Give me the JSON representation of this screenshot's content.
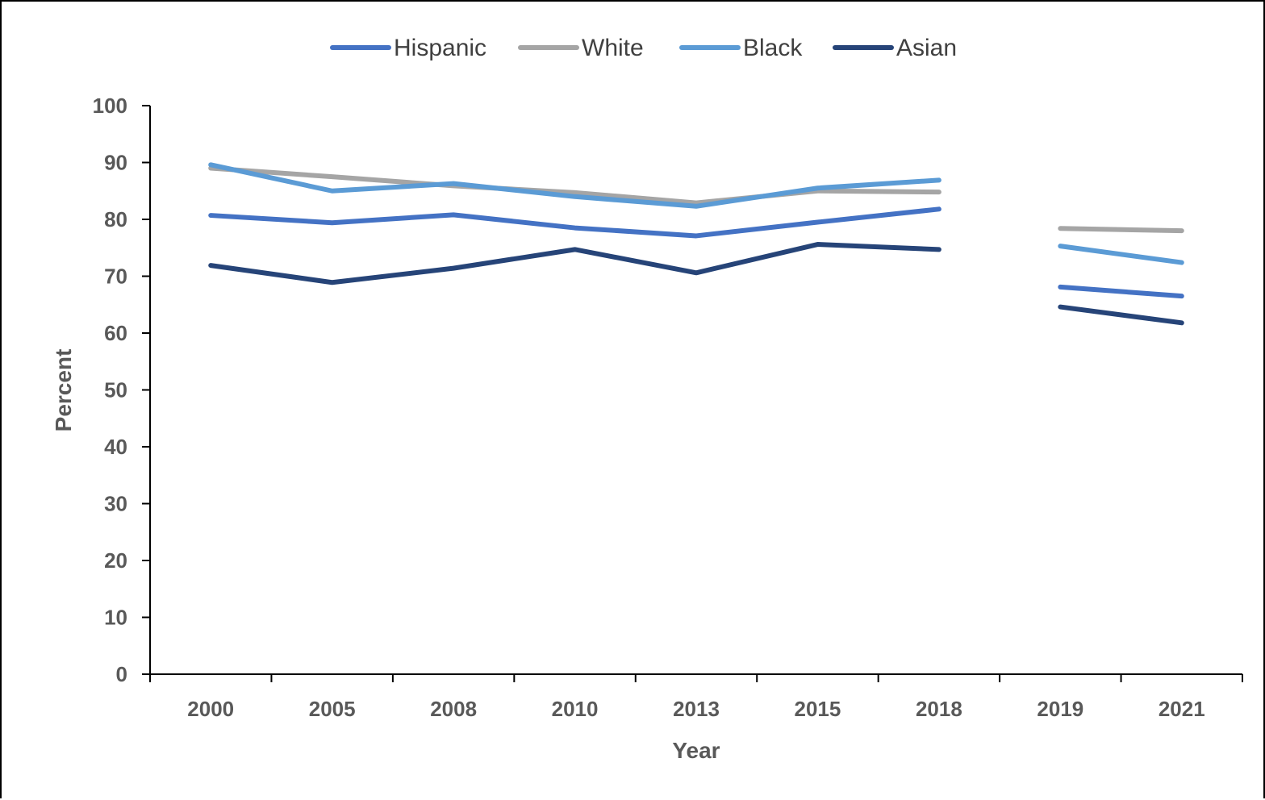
{
  "chart_data": {
    "type": "line",
    "categories": [
      "2000",
      "2005",
      "2008",
      "2010",
      "2013",
      "2015",
      "2018",
      "2019",
      "2021"
    ],
    "series": [
      {
        "name": "Hispanic",
        "color": "#4472C4",
        "values": [
          80.7,
          79.4,
          80.8,
          78.5,
          77.1,
          79.5,
          81.8,
          68.1,
          66.5
        ]
      },
      {
        "name": "White",
        "color": "#A5A5A5",
        "values": [
          89.0,
          87.5,
          85.9,
          84.7,
          82.9,
          85.0,
          84.8,
          78.4,
          78.0
        ]
      },
      {
        "name": "Black",
        "color": "#5B9BD5",
        "values": [
          89.6,
          85.0,
          86.3,
          84.0,
          82.3,
          85.5,
          86.9,
          75.3,
          72.4
        ]
      },
      {
        "name": "Asian",
        "color": "#264478",
        "values": [
          71.9,
          68.9,
          71.4,
          74.7,
          70.6,
          75.6,
          74.7,
          64.6,
          61.8
        ]
      }
    ],
    "segments": [
      [
        0,
        6
      ],
      [
        7,
        8
      ]
    ],
    "xlabel": "Year",
    "ylabel": "Percent",
    "ylim": [
      0,
      100
    ],
    "yticks": [
      0,
      10,
      20,
      30,
      40,
      50,
      60,
      70,
      80,
      90,
      100
    ],
    "grid": false,
    "legend_position": "top-center"
  }
}
